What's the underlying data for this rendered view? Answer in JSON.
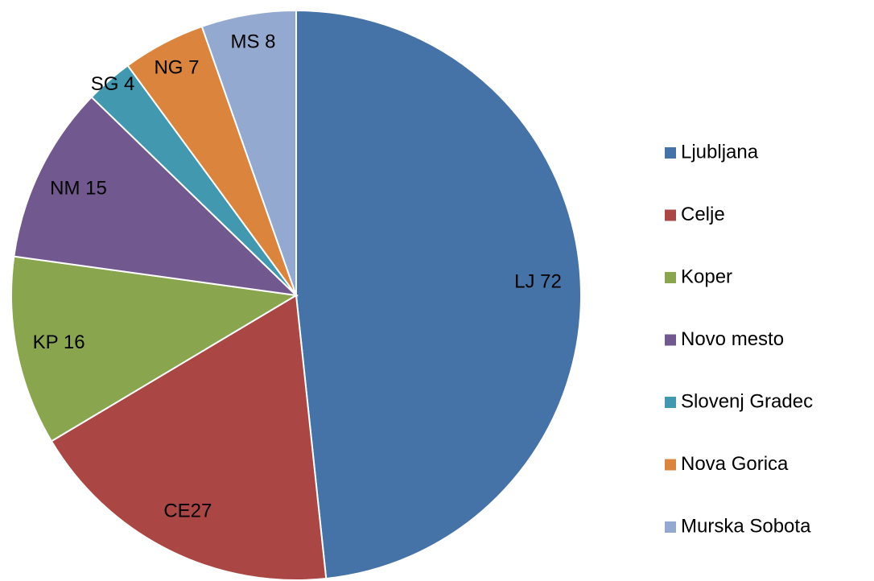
{
  "chart_data": {
    "type": "pie",
    "categories": [
      "Ljubljana",
      "Celje",
      "Koper",
      "Novo mesto",
      "Slovenj Gradec",
      "Nova Gorica",
      "Murska Sobota"
    ],
    "values": [
      72,
      27,
      16,
      15,
      4,
      7,
      8
    ],
    "value_labels": [
      "LJ 72",
      "CE27",
      "KP 16",
      "NM 15",
      "SG 4",
      "NG 7",
      "MS 8"
    ],
    "colors": [
      "#4572a7",
      "#aa4643",
      "#89a54e",
      "#71588f",
      "#4198af",
      "#db843d",
      "#93a9cf"
    ],
    "legend": "right"
  }
}
